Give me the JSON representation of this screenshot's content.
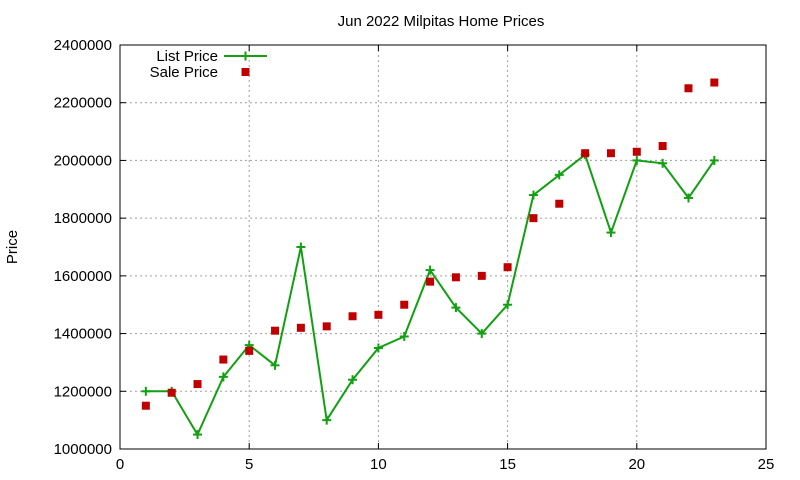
{
  "chart_data": {
    "type": "line",
    "title": "Jun 2022 Milpitas Home Prices",
    "xlabel": "",
    "ylabel": "Price",
    "xlim": [
      0,
      25
    ],
    "ylim": [
      1000000,
      2400000
    ],
    "x_ticks": [
      0,
      5,
      10,
      15,
      20,
      25
    ],
    "y_ticks": [
      1000000,
      1200000,
      1400000,
      1600000,
      1800000,
      2000000,
      2200000,
      2400000
    ],
    "x_tick_labels": [
      "0",
      "5",
      "10",
      "15",
      "20",
      "25"
    ],
    "y_tick_labels": [
      "1000000",
      "1200000",
      "1400000",
      "1600000",
      "1800000",
      "2000000",
      "2200000",
      "2400000"
    ],
    "grid": true,
    "legend_position": "top-left",
    "series": [
      {
        "name": "List Price",
        "style": "line-with-plus-markers",
        "color": "#10a010",
        "x": [
          1,
          2,
          3,
          4,
          5,
          6,
          7,
          8,
          9,
          10,
          11,
          12,
          13,
          14,
          15,
          16,
          17,
          18,
          19,
          20,
          21,
          22,
          23
        ],
        "values": [
          1200000,
          1200000,
          1050000,
          1250000,
          1360000,
          1290000,
          1700000,
          1100000,
          1240000,
          1350000,
          1390000,
          1620000,
          1490000,
          1400000,
          1500000,
          1880000,
          1950000,
          2020000,
          1750000,
          2000000,
          1990000,
          1870000,
          2000000
        ]
      },
      {
        "name": "Sale Price",
        "style": "square-markers",
        "color": "#c00000",
        "x": [
          1,
          2,
          3,
          4,
          5,
          6,
          7,
          8,
          9,
          10,
          11,
          12,
          13,
          14,
          15,
          16,
          17,
          18,
          19,
          20,
          21,
          22,
          23
        ],
        "values": [
          1150000,
          1195000,
          1225000,
          1310000,
          1340000,
          1410000,
          1420000,
          1425000,
          1460000,
          1465000,
          1500000,
          1580000,
          1595000,
          1600000,
          1630000,
          1800000,
          1850000,
          2025000,
          2025000,
          2030000,
          2050000,
          2250000,
          2270000
        ]
      }
    ]
  }
}
